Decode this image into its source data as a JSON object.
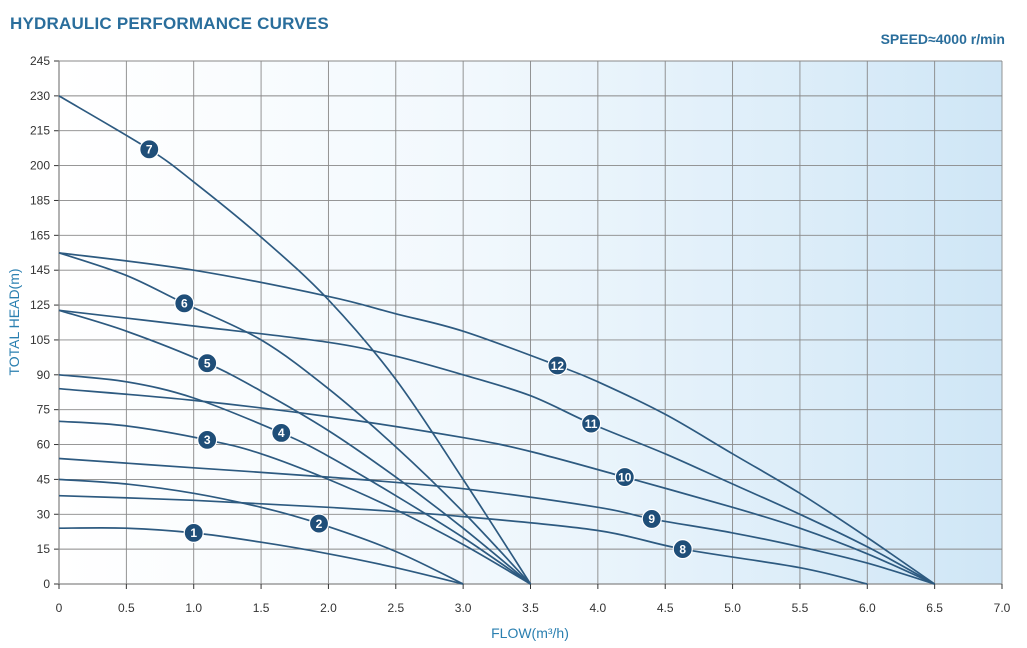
{
  "chart_data": {
    "type": "line",
    "title": "HYDRAULIC PERFORMANCE CURVES",
    "subtitle": "SPEED≈4000 r/min",
    "xlabel": "FLOW(m³/h)",
    "ylabel": "TOTAL HEAD(m)",
    "xlim": [
      0,
      7.0
    ],
    "ylim": [
      0,
      245
    ],
    "xticks": [
      "0",
      "0.5",
      "1.0",
      "1.5",
      "2.0",
      "2.5",
      "3.0",
      "3.5",
      "4.0",
      "4.5",
      "5.0",
      "5.5",
      "6.0",
      "6.5",
      "7.0"
    ],
    "yticks": [
      "0",
      "15",
      "30",
      "45",
      "60",
      "75",
      "90",
      "105",
      "125",
      "145",
      "165",
      "185",
      "200",
      "215",
      "230",
      "245"
    ],
    "grid": true,
    "colors": {
      "curve": "#2d5a80",
      "grid": "#888888",
      "axis_label": "#2a7fb0",
      "title": "#2a6e9c",
      "badge": "#1f4e78"
    },
    "series": [
      {
        "name": "1",
        "x": [
          0,
          0.5,
          1.0,
          1.5,
          2.0,
          2.5,
          3.0
        ],
        "y": [
          24,
          24,
          22,
          18,
          13,
          7,
          0
        ]
      },
      {
        "name": "2",
        "x": [
          0,
          0.5,
          1.0,
          1.5,
          1.93,
          2.5,
          3.0
        ],
        "y": [
          45,
          43,
          39,
          33,
          26,
          14,
          0
        ]
      },
      {
        "name": "3",
        "x": [
          0,
          0.5,
          1.1,
          1.5,
          2.0,
          2.5,
          3.0,
          3.5
        ],
        "y": [
          70,
          68,
          62,
          56,
          45,
          32,
          17,
          0
        ]
      },
      {
        "name": "4",
        "x": [
          0,
          0.5,
          1.0,
          1.65,
          2.0,
          2.5,
          3.0,
          3.5
        ],
        "y": [
          90,
          87,
          80,
          65,
          55,
          38,
          20,
          0
        ]
      },
      {
        "name": "5",
        "x": [
          0,
          0.5,
          1.1,
          1.5,
          2.0,
          2.5,
          3.0,
          3.5
        ],
        "y": [
          122,
          110,
          95,
          83,
          66,
          46,
          24,
          0
        ]
      },
      {
        "name": "6",
        "x": [
          0,
          0.5,
          0.93,
          1.5,
          2.0,
          2.5,
          3.0,
          3.5
        ],
        "y": [
          155,
          142,
          126,
          105,
          84,
          59,
          31,
          0
        ]
      },
      {
        "name": "7",
        "x": [
          0,
          0.67,
          1.0,
          1.5,
          2.0,
          2.5,
          3.0,
          3.5
        ],
        "y": [
          230,
          207,
          193,
          164,
          128,
          88,
          45,
          0
        ]
      },
      {
        "name": "8",
        "x": [
          0,
          1.0,
          2.0,
          3.0,
          4.0,
          4.63,
          5.5,
          6.0
        ],
        "y": [
          38,
          36,
          33,
          29,
          23,
          15,
          7,
          0
        ]
      },
      {
        "name": "9",
        "x": [
          0,
          1.0,
          2.0,
          3.0,
          4.0,
          4.4,
          5.0,
          5.5,
          6.0,
          6.5
        ],
        "y": [
          54,
          50,
          46,
          41,
          33,
          28,
          22,
          16,
          9,
          0
        ]
      },
      {
        "name": "10",
        "x": [
          0,
          1.0,
          2.0,
          3.0,
          3.5,
          4.2,
          5.0,
          5.5,
          6.0,
          6.5
        ],
        "y": [
          84,
          79,
          72,
          63,
          57,
          46,
          33,
          24,
          13,
          0
        ]
      },
      {
        "name": "11",
        "x": [
          0,
          1.0,
          2.0,
          2.5,
          3.0,
          3.5,
          3.95,
          4.5,
          5.0,
          5.5,
          6.0,
          6.5
        ],
        "y": [
          122,
          113,
          104,
          98,
          90,
          81,
          69,
          56,
          43,
          30,
          16,
          0
        ]
      },
      {
        "name": "12",
        "x": [
          0,
          1.0,
          2.0,
          2.5,
          3.0,
          3.7,
          4.0,
          4.5,
          5.0,
          5.5,
          6.0,
          6.5
        ],
        "y": [
          155,
          145,
          130,
          120,
          110,
          94,
          87,
          73,
          56,
          39,
          20,
          0
        ]
      }
    ],
    "labels": [
      {
        "text": "1",
        "x": 1.0,
        "y": 22
      },
      {
        "text": "2",
        "x": 1.93,
        "y": 26
      },
      {
        "text": "3",
        "x": 1.1,
        "y": 62
      },
      {
        "text": "4",
        "x": 1.65,
        "y": 65
      },
      {
        "text": "5",
        "x": 1.1,
        "y": 95
      },
      {
        "text": "6",
        "x": 0.93,
        "y": 126
      },
      {
        "text": "7",
        "x": 0.67,
        "y": 207
      },
      {
        "text": "8",
        "x": 4.63,
        "y": 15
      },
      {
        "text": "9",
        "x": 4.4,
        "y": 28
      },
      {
        "text": "10",
        "x": 4.2,
        "y": 46
      },
      {
        "text": "11",
        "x": 3.95,
        "y": 69
      },
      {
        "text": "12",
        "x": 3.7,
        "y": 94
      }
    ]
  }
}
